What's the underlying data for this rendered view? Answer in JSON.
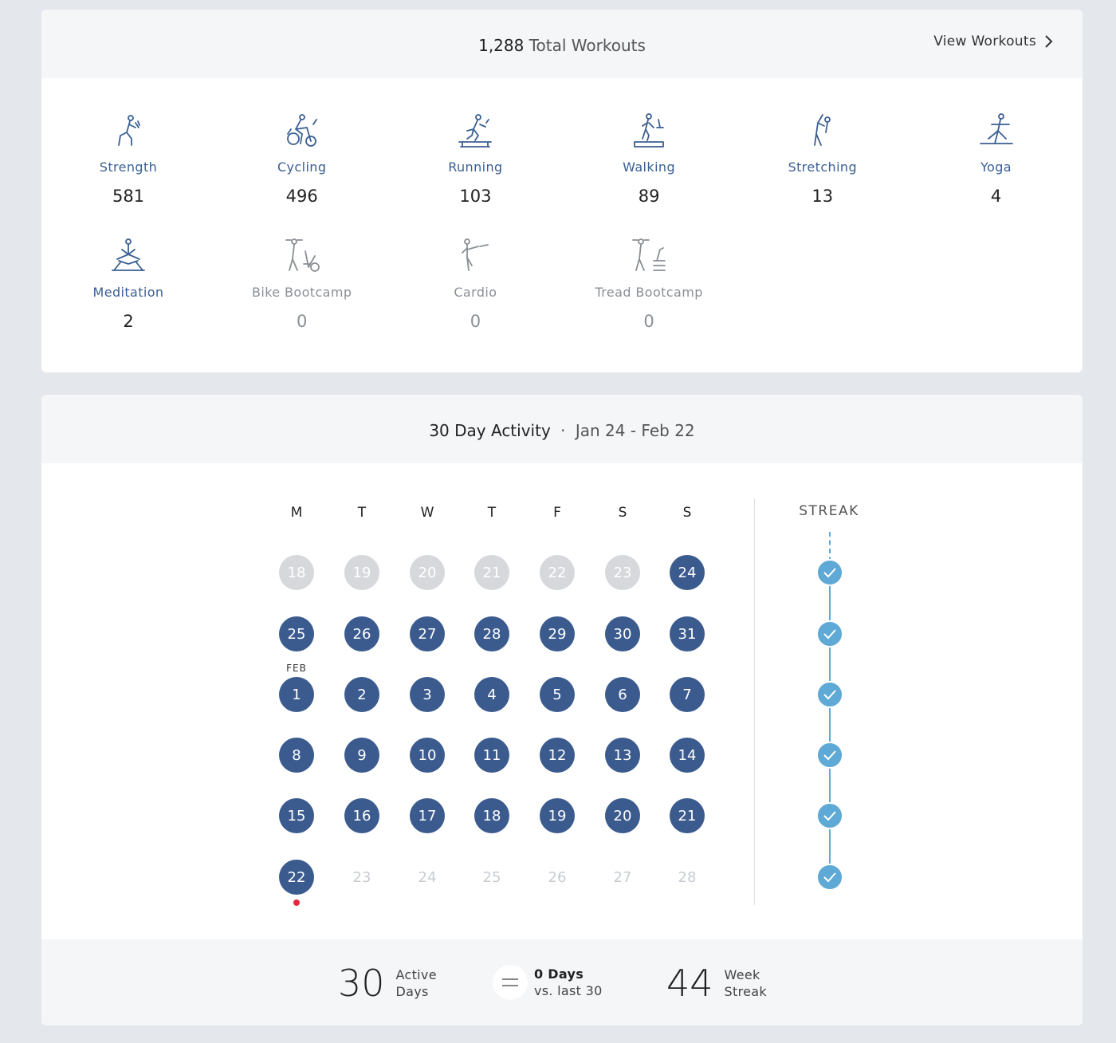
{
  "workouts": {
    "total_count": "1,288",
    "total_label": "Total Workouts",
    "view_link": "View Workouts",
    "types": [
      {
        "name": "Strength",
        "count": "581",
        "icon": "strength-icon",
        "dim": false
      },
      {
        "name": "Cycling",
        "count": "496",
        "icon": "cycling-icon",
        "dim": false
      },
      {
        "name": "Running",
        "count": "103",
        "icon": "running-icon",
        "dim": false
      },
      {
        "name": "Walking",
        "count": "89",
        "icon": "walking-icon",
        "dim": false
      },
      {
        "name": "Stretching",
        "count": "13",
        "icon": "stretching-icon",
        "dim": false
      },
      {
        "name": "Yoga",
        "count": "4",
        "icon": "yoga-icon",
        "dim": false
      },
      {
        "name": "Meditation",
        "count": "2",
        "icon": "meditation-icon",
        "dim": false
      },
      {
        "name": "Bike Bootcamp",
        "count": "0",
        "icon": "bike-bootcamp-icon",
        "dim": true
      },
      {
        "name": "Cardio",
        "count": "0",
        "icon": "cardio-icon",
        "dim": true
      },
      {
        "name": "Tread Bootcamp",
        "count": "0",
        "icon": "tread-bootcamp-icon",
        "dim": true
      }
    ]
  },
  "activity": {
    "title": "30 Day Activity",
    "separator": "·",
    "range": "Jan 24 - Feb 22",
    "weekdays": [
      "M",
      "T",
      "W",
      "T",
      "F",
      "S",
      "S"
    ],
    "month_tag": "FEB",
    "streak_title": "STREAK",
    "weeks": [
      [
        {
          "d": "18",
          "s": "past"
        },
        {
          "d": "19",
          "s": "past"
        },
        {
          "d": "20",
          "s": "past"
        },
        {
          "d": "21",
          "s": "past"
        },
        {
          "d": "22",
          "s": "past"
        },
        {
          "d": "23",
          "s": "past"
        },
        {
          "d": "24",
          "s": "active"
        }
      ],
      [
        {
          "d": "25",
          "s": "active"
        },
        {
          "d": "26",
          "s": "active"
        },
        {
          "d": "27",
          "s": "active"
        },
        {
          "d": "28",
          "s": "active"
        },
        {
          "d": "29",
          "s": "active"
        },
        {
          "d": "30",
          "s": "active"
        },
        {
          "d": "31",
          "s": "active"
        }
      ],
      [
        {
          "d": "1",
          "s": "active"
        },
        {
          "d": "2",
          "s": "active"
        },
        {
          "d": "3",
          "s": "active"
        },
        {
          "d": "4",
          "s": "active"
        },
        {
          "d": "5",
          "s": "active"
        },
        {
          "d": "6",
          "s": "active"
        },
        {
          "d": "7",
          "s": "active"
        }
      ],
      [
        {
          "d": "8",
          "s": "active"
        },
        {
          "d": "9",
          "s": "active"
        },
        {
          "d": "10",
          "s": "active"
        },
        {
          "d": "11",
          "s": "active"
        },
        {
          "d": "12",
          "s": "active"
        },
        {
          "d": "13",
          "s": "active"
        },
        {
          "d": "14",
          "s": "active"
        }
      ],
      [
        {
          "d": "15",
          "s": "active"
        },
        {
          "d": "16",
          "s": "active"
        },
        {
          "d": "17",
          "s": "active"
        },
        {
          "d": "18",
          "s": "active"
        },
        {
          "d": "19",
          "s": "active"
        },
        {
          "d": "20",
          "s": "active"
        },
        {
          "d": "21",
          "s": "active"
        }
      ],
      [
        {
          "d": "22",
          "s": "active"
        },
        {
          "d": "23",
          "s": "future"
        },
        {
          "d": "24",
          "s": "future"
        },
        {
          "d": "25",
          "s": "future"
        },
        {
          "d": "26",
          "s": "future"
        },
        {
          "d": "27",
          "s": "future"
        },
        {
          "d": "28",
          "s": "future"
        }
      ]
    ],
    "streak_weeks_checked": [
      true,
      true,
      true,
      true,
      true,
      true
    ]
  },
  "summary": {
    "active_days_value": "30",
    "active_days_label_1": "Active",
    "active_days_label_2": "Days",
    "compare_value": "0 Days",
    "compare_label": "vs. last 30",
    "week_streak_value": "44",
    "week_streak_label_1": "Week",
    "week_streak_label_2": "Streak"
  },
  "colors": {
    "active_day": "#3b5b8f",
    "past_day": "#d6d8db",
    "streak": "#5ea9d5",
    "today_dot": "#e8283c",
    "type_label": "#3a5f92"
  }
}
